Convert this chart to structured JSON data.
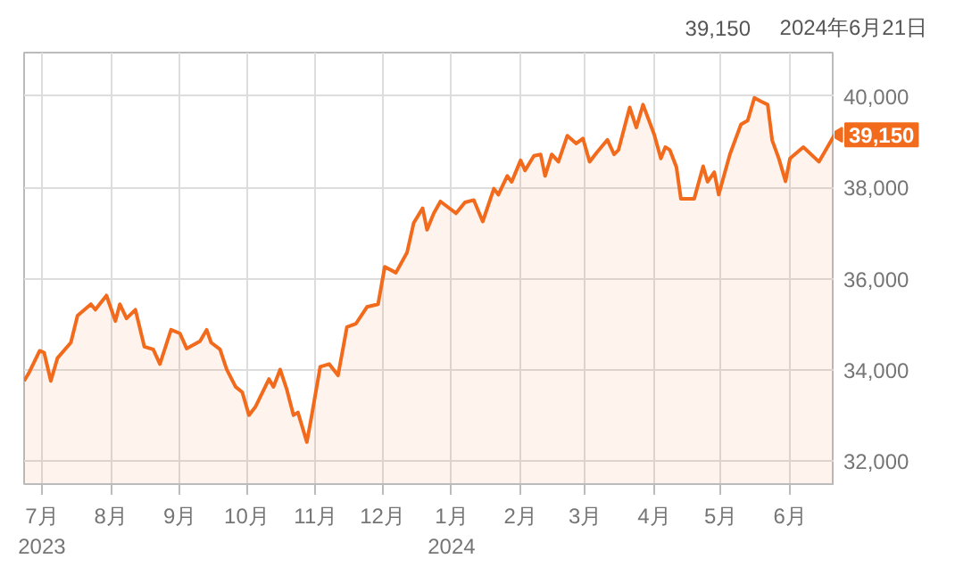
{
  "chart_data": {
    "type": "area",
    "color": "#f26b1d",
    "x": [
      "2023-06-23",
      "2023-06-25",
      "2023-06-30",
      "2023-07-02",
      "2023-07-05",
      "2023-07-08",
      "2023-07-14",
      "2023-07-17",
      "2023-07-23",
      "2023-07-25",
      "2023-07-30",
      "2023-08-03",
      "2023-08-05",
      "2023-08-08",
      "2023-08-12",
      "2023-08-16",
      "2023-08-20",
      "2023-08-23",
      "2023-08-28",
      "2023-09-01",
      "2023-09-04",
      "2023-09-10",
      "2023-09-13",
      "2023-09-15",
      "2023-09-19",
      "2023-09-22",
      "2023-09-26",
      "2023-09-29",
      "2023-10-02",
      "2023-10-05",
      "2023-10-11",
      "2023-10-13",
      "2023-10-16",
      "2023-10-19",
      "2023-10-22",
      "2023-10-24",
      "2023-10-28",
      "2023-10-30",
      "2023-11-03",
      "2023-11-07",
      "2023-11-11",
      "2023-11-15",
      "2023-11-19",
      "2023-11-24",
      "2023-11-29",
      "2023-12-02",
      "2023-12-07",
      "2023-12-12",
      "2023-12-15",
      "2023-12-19",
      "2023-12-21",
      "2023-12-24",
      "2023-12-27",
      "2024-01-03",
      "2024-01-07",
      "2024-01-11",
      "2024-01-15",
      "2024-01-20",
      "2024-01-22",
      "2024-01-26",
      "2024-01-28",
      "2024-02-01",
      "2024-02-03",
      "2024-02-07",
      "2024-02-10",
      "2024-02-12",
      "2024-02-15",
      "2024-02-18",
      "2024-02-22",
      "2024-02-26",
      "2024-02-29",
      "2024-03-03",
      "2024-03-06",
      "2024-03-11",
      "2024-03-14",
      "2024-03-16",
      "2024-03-21",
      "2024-03-24",
      "2024-03-27",
      "2024-04-01",
      "2024-04-04",
      "2024-04-06",
      "2024-04-08",
      "2024-04-11",
      "2024-04-13",
      "2024-04-19",
      "2024-04-23",
      "2024-04-25",
      "2024-04-28",
      "2024-04-30",
      "2024-05-05",
      "2024-05-10",
      "2024-05-13",
      "2024-05-16",
      "2024-05-19",
      "2024-05-22",
      "2024-05-24",
      "2024-05-27",
      "2024-05-30",
      "2024-06-01",
      "2024-06-07",
      "2024-06-14",
      "2024-06-21"
    ],
    "values": [
      33760,
      33920,
      34420,
      34380,
      33760,
      34260,
      34600,
      35190,
      35440,
      35320,
      35630,
      35070,
      35440,
      35130,
      35320,
      34510,
      34450,
      34130,
      34880,
      34800,
      34470,
      34630,
      34880,
      34600,
      34450,
      34010,
      33630,
      33510,
      33010,
      33200,
      33800,
      33630,
      34010,
      33570,
      33010,
      33070,
      32420,
      32950,
      34070,
      34130,
      33880,
      34940,
      35010,
      35380,
      35440,
      36260,
      36130,
      36570,
      37220,
      37540,
      37070,
      37430,
      37690,
      37430,
      37670,
      37720,
      37250,
      37970,
      37840,
      38250,
      38120,
      38590,
      38370,
      38690,
      38720,
      38250,
      38720,
      38560,
      39130,
      38960,
      39070,
      38560,
      38750,
      39040,
      38720,
      38820,
      39750,
      39310,
      39810,
      39160,
      38630,
      38880,
      38820,
      38440,
      37750,
      37750,
      38460,
      38120,
      38330,
      37840,
      38720,
      39380,
      39460,
      39960,
      39880,
      39810,
      39030,
      38630,
      38130,
      38630,
      38880,
      38560,
      39150
    ],
    "xlim": [
      "2023-06-23",
      "2024-06-21"
    ],
    "xticks": [
      {
        "value": "2023-07-01",
        "label": "7月\n2023"
      },
      {
        "value": "2023-08-01",
        "label": "8月"
      },
      {
        "value": "2023-09-01",
        "label": "9月"
      },
      {
        "value": "2023-10-01",
        "label": "10月"
      },
      {
        "value": "2023-11-01",
        "label": "11月"
      },
      {
        "value": "2023-12-01",
        "label": "12月"
      },
      {
        "value": "2024-01-01",
        "label": "1月\n2024"
      },
      {
        "value": "2024-02-01",
        "label": "2月"
      },
      {
        "value": "2024-03-01",
        "label": "3月"
      },
      {
        "value": "2024-04-01",
        "label": "4月"
      },
      {
        "value": "2024-05-01",
        "label": "5月"
      },
      {
        "value": "2024-06-01",
        "label": "6月"
      }
    ],
    "ylim": [
      31500,
      40950
    ],
    "yticks": [
      {
        "value": 32000,
        "label": "32,000"
      },
      {
        "value": 34000,
        "label": "34,000"
      },
      {
        "value": 36000,
        "label": "36,000"
      },
      {
        "value": 38000,
        "label": "38,000"
      },
      {
        "value": 40000,
        "label": "40,000"
      }
    ],
    "grid": true,
    "annotations": [
      {
        "text": "39,150",
        "x": "2024-06-21",
        "y": 39150
      },
      "39,150",
      "2024年6月21日"
    ]
  }
}
